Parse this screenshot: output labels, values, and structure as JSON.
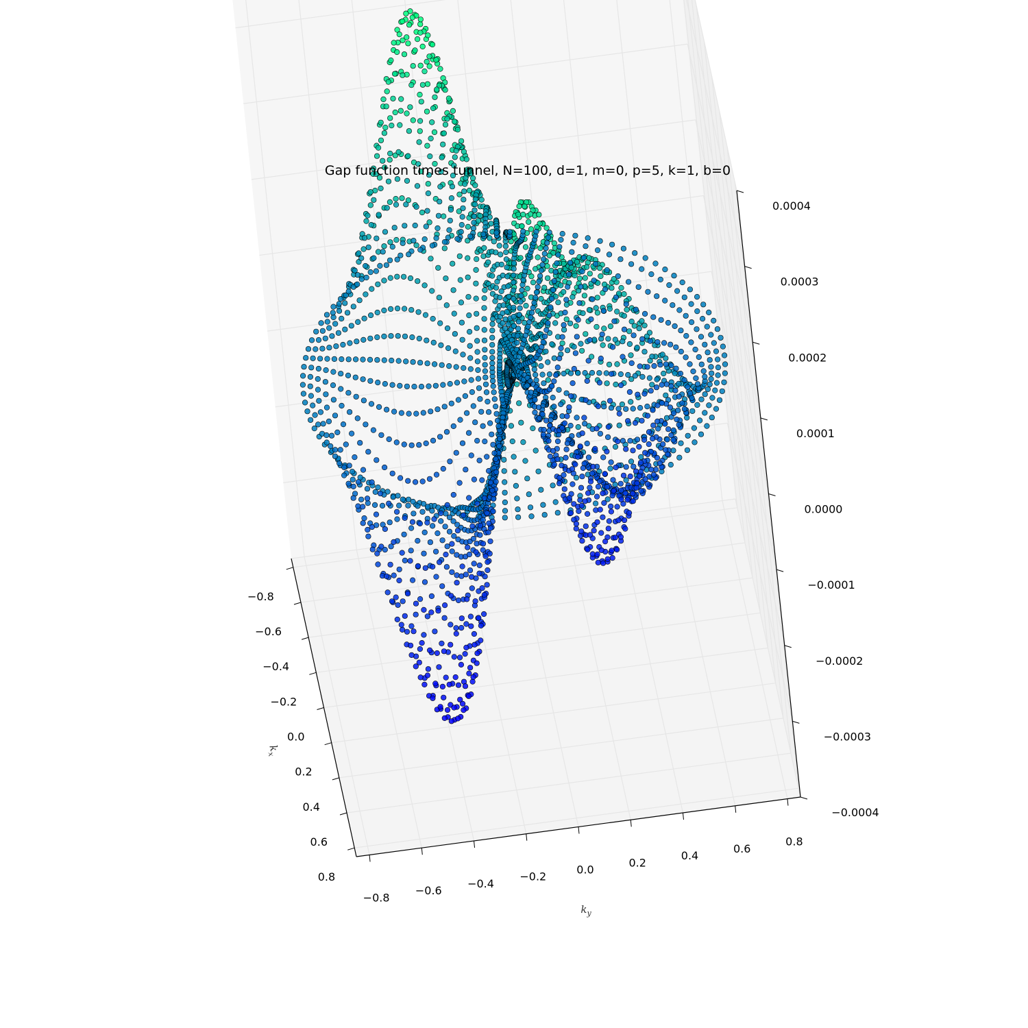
{
  "chart_data": {
    "type": "scatter",
    "projection": "3d",
    "title": "Gap function times tunnel, N=100, d=1, m=0, p=5, k=1, b=0",
    "xlabel": "k_x",
    "ylabel": "k_y",
    "zlabel": "",
    "x_ticks": [
      "−0.8",
      "−0.6",
      "−0.4",
      "−0.2",
      "0.0",
      "0.2",
      "0.4",
      "0.6",
      "0.8"
    ],
    "y_ticks": [
      "−0.8",
      "−0.6",
      "−0.4",
      "−0.2",
      "0.0",
      "0.2",
      "0.4",
      "0.6",
      "0.8"
    ],
    "z_ticks": [
      "−0.0004",
      "−0.0003",
      "−0.0002",
      "−0.0001",
      "0.0000",
      "0.0001",
      "0.0002",
      "0.0003",
      "0.0004"
    ],
    "xlim": [
      -0.85,
      0.85
    ],
    "ylim": [
      -0.85,
      0.85
    ],
    "zlim": [
      -0.0004,
      0.0004
    ],
    "grid": true,
    "colormap": "winter-like (blue → green) by z",
    "point_edge_color": "#000000",
    "sampling": {
      "radial_lines": 100,
      "points_per_line": 30,
      "r_min": 0.0,
      "r_max": 0.8
    },
    "surface_description": "Polar-grid points; amplitude peaks (~0.0004) around r≈0.5 with angular (p=5 like) modulation, near zero at center and outer ring"
  }
}
